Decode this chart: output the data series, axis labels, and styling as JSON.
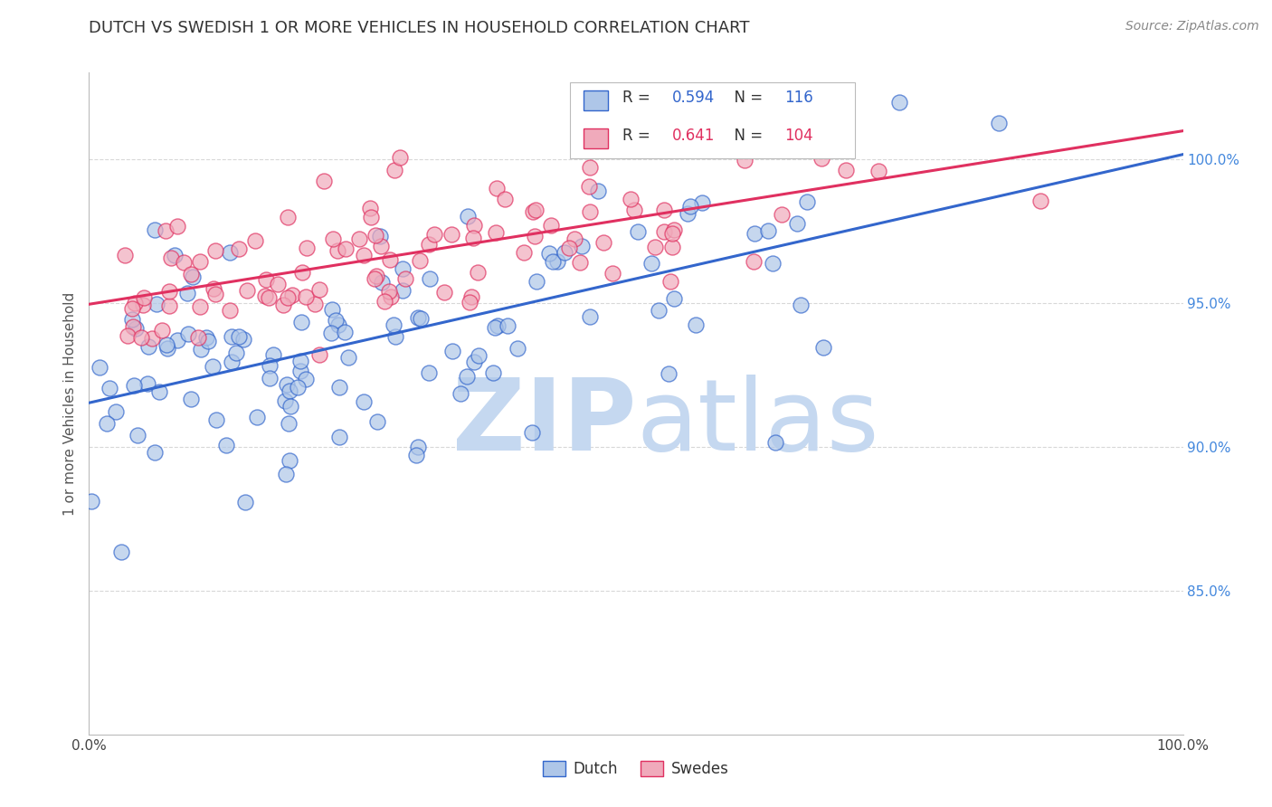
{
  "title": "DUTCH VS SWEDISH 1 OR MORE VEHICLES IN HOUSEHOLD CORRELATION CHART",
  "source": "Source: ZipAtlas.com",
  "ylabel": "1 or more Vehicles in Household",
  "xlim": [
    0.0,
    1.0
  ],
  "ylim": [
    0.8,
    1.03
  ],
  "x_tick_labels": [
    "0.0%",
    "100.0%"
  ],
  "y_tick_labels_right": [
    "85.0%",
    "90.0%",
    "95.0%",
    "100.0%"
  ],
  "y_tick_positions_right": [
    0.85,
    0.9,
    0.95,
    1.0
  ],
  "dutch_R": 0.594,
  "dutch_N": 116,
  "swedes_R": 0.641,
  "swedes_N": 104,
  "dutch_color": "#aec6e8",
  "swedes_color": "#f0aabb",
  "dutch_line_color": "#3366cc",
  "swedes_line_color": "#e03060",
  "legend_dutch_label": "Dutch",
  "legend_swedes_label": "Swedes",
  "watermark_zip": "ZIP",
  "watermark_atlas": "atlas",
  "watermark_color": "#c5d8f0",
  "background_color": "#ffffff",
  "title_fontsize": 13,
  "source_fontsize": 10,
  "tick_label_color_right": "#4488dd",
  "grid_color": "#d8d8d8",
  "seed": 12345
}
